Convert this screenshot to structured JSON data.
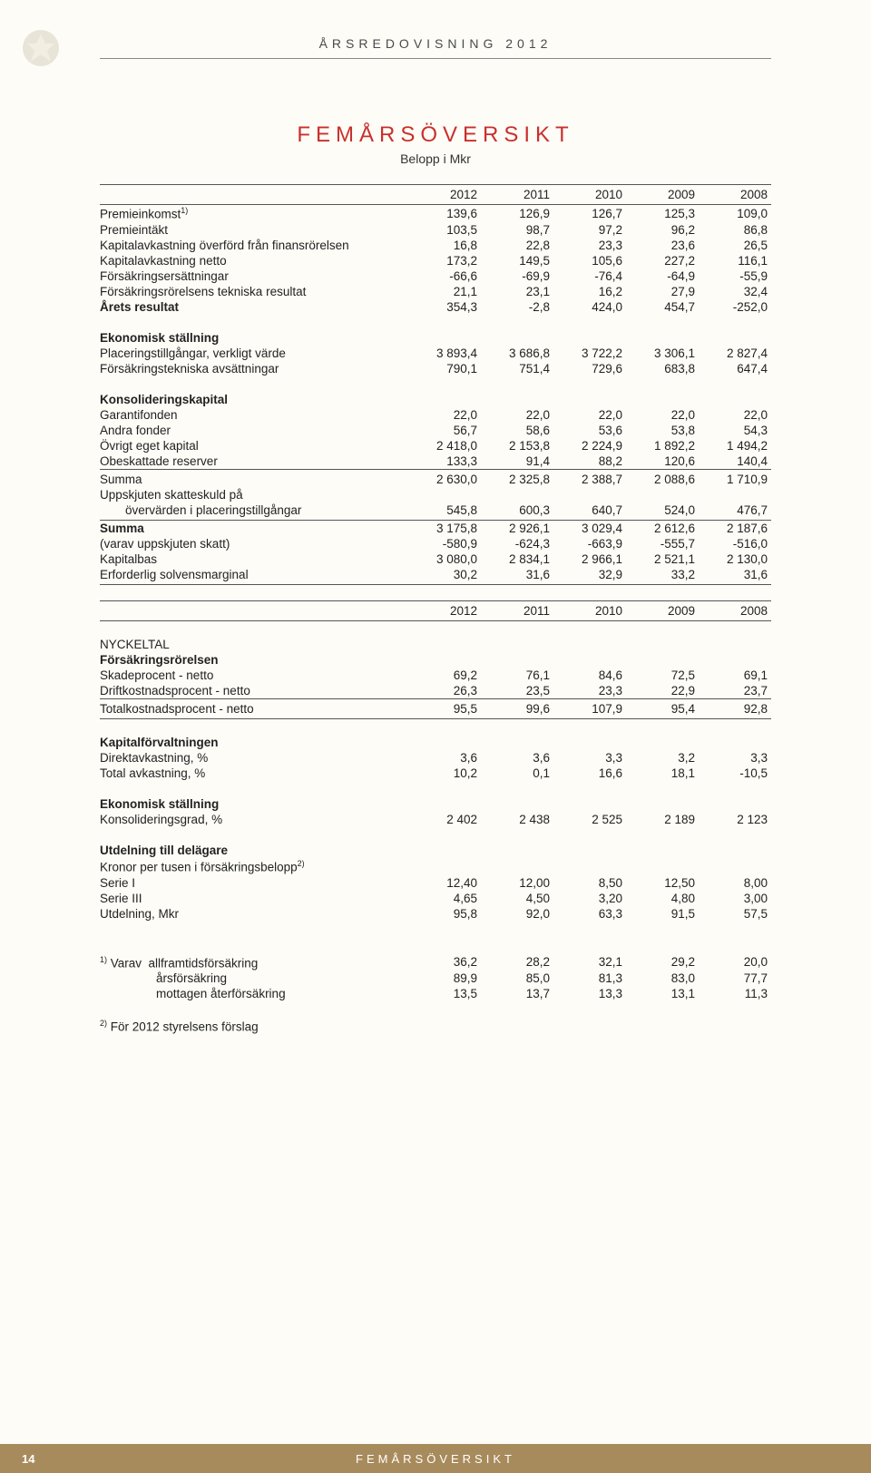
{
  "header": "ÅRSREDOVISNING 2012",
  "title": "FEMÅRSÖVERSIKT",
  "subtitle": "Belopp i Mkr",
  "years": [
    "2012",
    "2011",
    "2010",
    "2009",
    "2008"
  ],
  "sections": {
    "main": [
      {
        "label": "Premieinkomst",
        "sup": "1)",
        "vals": [
          "139,6",
          "126,9",
          "126,7",
          "125,3",
          "109,0"
        ]
      },
      {
        "label": "Premieintäkt",
        "vals": [
          "103,5",
          "98,7",
          "97,2",
          "96,2",
          "86,8"
        ]
      },
      {
        "label": "Kapitalavkastning överförd från finansrörelsen",
        "vals": [
          "16,8",
          "22,8",
          "23,3",
          "23,6",
          "26,5"
        ]
      },
      {
        "label": "Kapitalavkastning netto",
        "vals": [
          "173,2",
          "149,5",
          "105,6",
          "227,2",
          "116,1"
        ]
      },
      {
        "label": "Försäkringsersättningar",
        "vals": [
          "-66,6",
          "-69,9",
          "-76,4",
          "-64,9",
          "-55,9"
        ]
      },
      {
        "label": "Försäkringsrörelsens tekniska resultat",
        "vals": [
          "21,1",
          "23,1",
          "16,2",
          "27,9",
          "32,4"
        ]
      },
      {
        "label": "Årets resultat",
        "bold": true,
        "vals": [
          "354,3",
          "-2,8",
          "424,0",
          "454,7",
          "-252,0"
        ]
      }
    ],
    "ekonomisk": {
      "heading": "Ekonomisk ställning",
      "rows": [
        {
          "label": "Placeringstillgångar, verkligt värde",
          "vals": [
            "3 893,4",
            "3 686,8",
            "3 722,2",
            "3 306,1",
            "2 827,4"
          ]
        },
        {
          "label": "Försäkringstekniska avsättningar",
          "vals": [
            "790,1",
            "751,4",
            "729,6",
            "683,8",
            "647,4"
          ]
        }
      ]
    },
    "konsolid": {
      "heading": "Konsolideringskapital",
      "rows": [
        {
          "label": "Garantifonden",
          "vals": [
            "22,0",
            "22,0",
            "22,0",
            "22,0",
            "22,0"
          ]
        },
        {
          "label": "Andra fonder",
          "vals": [
            "56,7",
            "58,6",
            "53,6",
            "53,8",
            "54,3"
          ]
        },
        {
          "label": "Övrigt eget kapital",
          "vals": [
            "2 418,0",
            "2 153,8",
            "2 224,9",
            "1 892,2",
            "1 494,2"
          ]
        },
        {
          "label": "Obeskattade reserver",
          "vals": [
            "133,3",
            "91,4",
            "88,2",
            "120,6",
            "140,4"
          ]
        }
      ],
      "summa1": {
        "label": "Summa",
        "vals": [
          "2 630,0",
          "2 325,8",
          "2 388,7",
          "2 088,6",
          "1 710,9"
        ]
      },
      "uppskj_line1": "Uppskjuten skatteskuld på",
      "uppskj_line2": "övervärden i placeringstillgångar",
      "uppskj_vals": [
        "545,8",
        "600,3",
        "640,7",
        "524,0",
        "476,7"
      ],
      "summa2": {
        "label": "Summa",
        "vals": [
          "3 175,8",
          "2 926,1",
          "3 029,4",
          "2 612,6",
          "2 187,6"
        ]
      },
      "after": [
        {
          "label": "(varav uppskjuten skatt)",
          "vals": [
            "-580,9",
            "-624,3",
            "-663,9",
            "-555,7",
            "-516,0"
          ]
        },
        {
          "label": "Kapitalbas",
          "vals": [
            "3 080,0",
            "2 834,1",
            "2 966,1",
            "2 521,1",
            "2 130,0"
          ]
        },
        {
          "label": "Erforderlig solvensmarginal",
          "vals": [
            "30,2",
            "31,6",
            "32,9",
            "33,2",
            "31,6"
          ]
        }
      ]
    },
    "nyckeltal": {
      "heading": "NYCKELTAL",
      "fors_heading": "Försäkringsrörelsen",
      "fors": [
        {
          "label": "Skadeprocent - netto",
          "vals": [
            "69,2",
            "76,1",
            "84,6",
            "72,5",
            "69,1"
          ]
        },
        {
          "label": "Driftkostnadsprocent - netto",
          "vals": [
            "26,3",
            "23,5",
            "23,3",
            "22,9",
            "23,7"
          ]
        }
      ],
      "total": {
        "label": "Totalkostnadsprocent - netto",
        "vals": [
          "95,5",
          "99,6",
          "107,9",
          "95,4",
          "92,8"
        ]
      },
      "kapital_heading": "Kapitalförvaltningen",
      "kapital": [
        {
          "label": "Direktavkastning, %",
          "vals": [
            "3,6",
            "3,6",
            "3,3",
            "3,2",
            "3,3"
          ]
        },
        {
          "label": "Total avkastning, %",
          "vals": [
            "10,2",
            "0,1",
            "16,6",
            "18,1",
            "-10,5"
          ]
        }
      ],
      "ekon_heading": "Ekonomisk ställning",
      "ekon": {
        "label": "Konsolideringsgrad, %",
        "vals": [
          "2 402",
          "2 438",
          "2 525",
          "2 189",
          "2 123"
        ]
      },
      "utd_heading": "Utdelning till delägare",
      "utd_sub": "Kronor per tusen i försäkringsbelopp",
      "utd_sup": "2)",
      "utd": [
        {
          "label": "Serie I",
          "vals": [
            "12,40",
            "12,00",
            "8,50",
            "12,50",
            "8,00"
          ]
        },
        {
          "label": "Serie III",
          "vals": [
            "4,65",
            "4,50",
            "3,20",
            "4,80",
            "3,00"
          ]
        },
        {
          "label": "Utdelning, Mkr",
          "vals": [
            "95,8",
            "92,0",
            "63,3",
            "91,5",
            "57,5"
          ]
        }
      ]
    },
    "footnotes": {
      "f1_prefix": "1)",
      "f1_label": "Varav",
      "f1_rows": [
        {
          "label": "allframtidsförsäkring",
          "vals": [
            "36,2",
            "28,2",
            "32,1",
            "29,2",
            "20,0"
          ]
        },
        {
          "label": "årsförsäkring",
          "vals": [
            "89,9",
            "85,0",
            "81,3",
            "83,0",
            "77,7"
          ]
        },
        {
          "label": "mottagen återförsäkring",
          "vals": [
            "13,5",
            "13,7",
            "13,3",
            "13,1",
            "11,3"
          ]
        }
      ],
      "f2_prefix": "2)",
      "f2_text": "För 2012 styrelsens förslag"
    }
  },
  "footer": {
    "page": "14",
    "text": "FEMÅRSÖVERSIKT"
  }
}
